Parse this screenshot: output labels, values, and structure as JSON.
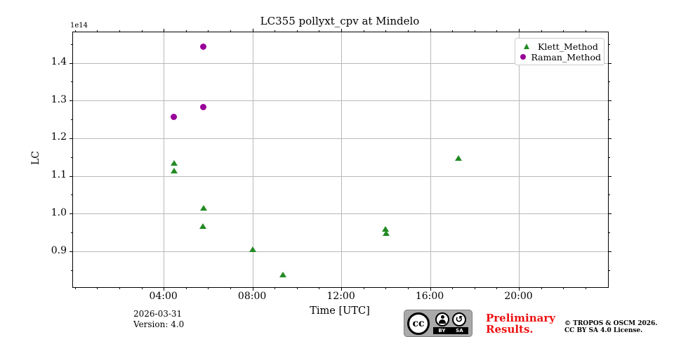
{
  "figure": {
    "title": "LC355 pollyxt_cpv at Mindelo",
    "offset_label": "1e14",
    "footer": {
      "date": "2026-03-31",
      "version": "Version: 4.0",
      "preliminary_line1": "Preliminary",
      "preliminary_line2": "Results.",
      "copyright_line1": "© TROPOS & OSCM 2026.",
      "copyright_line2": "CC BY SA 4.0 License.",
      "cc_badge": {
        "cc": "cc",
        "by": "BY",
        "sa": "SA",
        "sa_arrow": "↺"
      }
    },
    "colors": {
      "klett_green": "#228B22",
      "raman_purple": "#990099",
      "grid_gray": "#b9b9b9",
      "preliminary_red": "#ee1111"
    }
  },
  "chart_data": {
    "type": "scatter",
    "title": "LC355 pollyxt_cpv at Mindelo",
    "xlabel": "Time [UTC]",
    "ylabel": "LC",
    "y_offset_factor": "1e14",
    "grid": true,
    "legend_position": "upper right",
    "xlim_hours": [
      -0.1,
      24.0
    ],
    "ylim": [
      0.806,
      1.482
    ],
    "x_major_ticks": [
      {
        "hour": 4,
        "label": "04:00"
      },
      {
        "hour": 8,
        "label": "08:00"
      },
      {
        "hour": 12,
        "label": "12:00"
      },
      {
        "hour": 16,
        "label": "16:00"
      },
      {
        "hour": 20,
        "label": "20:00"
      }
    ],
    "x_minor_tick_hours": [
      0,
      1,
      2,
      3,
      5,
      6,
      7,
      9,
      10,
      11,
      13,
      14,
      15,
      17,
      18,
      19,
      21,
      22,
      23
    ],
    "y_major_ticks": [
      {
        "value": 0.9,
        "label": "0.9"
      },
      {
        "value": 1.0,
        "label": "1.0"
      },
      {
        "value": 1.1,
        "label": "1.1"
      },
      {
        "value": 1.2,
        "label": "1.2"
      },
      {
        "value": 1.3,
        "label": "1.3"
      },
      {
        "value": 1.4,
        "label": "1.4"
      }
    ],
    "y_minor_tick_values": [
      0.85,
      0.95,
      1.05,
      1.15,
      1.25,
      1.35,
      1.45
    ],
    "series": [
      {
        "name": "Klett_Method",
        "marker": "triangle",
        "color": "#228B22",
        "points": [
          {
            "hour": 4.45,
            "lc": 1.135
          },
          {
            "hour": 4.45,
            "lc": 1.115
          },
          {
            "hour": 5.78,
            "lc": 1.015
          },
          {
            "hour": 5.76,
            "lc": 0.968
          },
          {
            "hour": 8.0,
            "lc": 0.905
          },
          {
            "hour": 9.35,
            "lc": 0.838
          },
          {
            "hour": 13.97,
            "lc": 0.96
          },
          {
            "hour": 13.99,
            "lc": 0.949
          },
          {
            "hour": 17.26,
            "lc": 1.148
          }
        ]
      },
      {
        "name": "Raman_Method",
        "marker": "circle",
        "color": "#990099",
        "points": [
          {
            "hour": 4.45,
            "lc": 1.258
          },
          {
            "hour": 5.78,
            "lc": 1.284
          },
          {
            "hour": 5.76,
            "lc": 1.444
          }
        ]
      }
    ]
  }
}
